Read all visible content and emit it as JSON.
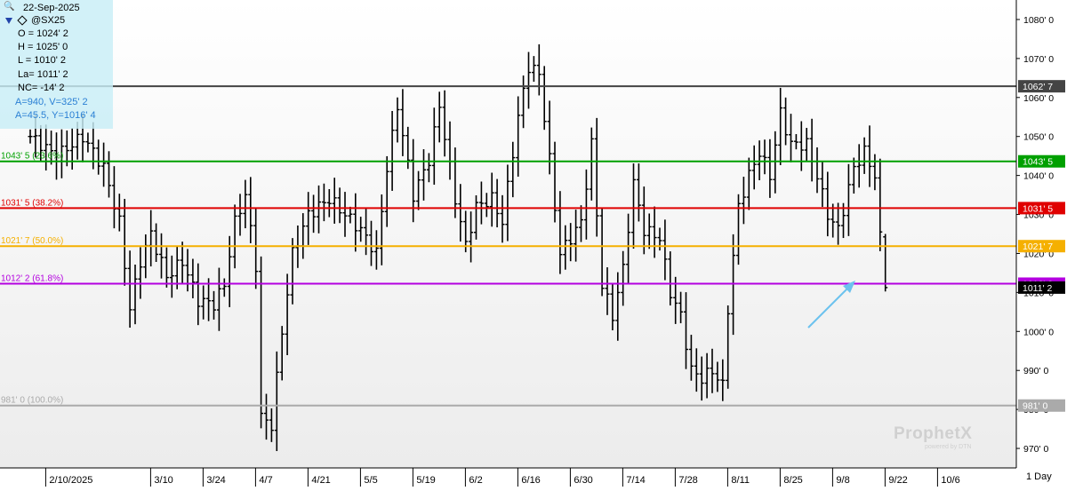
{
  "chart_data": {
    "type": "ohlc",
    "symbol": "@SX25",
    "interval": "1 Day",
    "ylim": [
      965,
      1085
    ],
    "grid": false,
    "y_ticks": [
      {
        "value": 1080,
        "label": "1080' 0"
      },
      {
        "value": 1070,
        "label": "1070' 0"
      },
      {
        "value": 1060,
        "label": "1060' 0"
      },
      {
        "value": 1050,
        "label": "1050' 0"
      },
      {
        "value": 1040,
        "label": "1040' 0"
      },
      {
        "value": 1030,
        "label": "1030' 0"
      },
      {
        "value": 1020,
        "label": "1020' 0"
      },
      {
        "value": 1010,
        "label": "1010' 0"
      },
      {
        "value": 1000,
        "label": "1000' 0"
      },
      {
        "value": 990,
        "label": "990' 0"
      },
      {
        "value": 980,
        "label": "980' 0"
      },
      {
        "value": 970,
        "label": "970' 0"
      }
    ],
    "x_ticks": [
      {
        "index": 6,
        "label": "2/10/2025"
      },
      {
        "index": 26,
        "label": "3/10"
      },
      {
        "index": 36,
        "label": "3/24"
      },
      {
        "index": 46,
        "label": "4/7"
      },
      {
        "index": 56,
        "label": "4/21"
      },
      {
        "index": 66,
        "label": "5/5"
      },
      {
        "index": 76,
        "label": "5/19"
      },
      {
        "index": 86,
        "label": "6/2"
      },
      {
        "index": 96,
        "label": "6/16"
      },
      {
        "index": 106,
        "label": "6/30"
      },
      {
        "index": 116,
        "label": "7/14"
      },
      {
        "index": 126,
        "label": "7/28"
      },
      {
        "index": 136,
        "label": "8/11"
      },
      {
        "index": 146,
        "label": "8/25"
      },
      {
        "index": 156,
        "label": "9/8"
      },
      {
        "index": 166,
        "label": "9/22"
      },
      {
        "index": 176,
        "label": "10/6"
      }
    ],
    "levels": [
      {
        "value": 1062.875,
        "left_label": "",
        "axis_label": "1062' 7",
        "color": "#444444"
      },
      {
        "value": 1043.625,
        "left_label": "1043' 5 (23.6%)",
        "axis_label": "1043' 5",
        "color": "#00a000"
      },
      {
        "value": 1031.625,
        "left_label": "1031' 5 (38.2%)",
        "axis_label": "1031' 5",
        "color": "#e00000"
      },
      {
        "value": 1021.875,
        "left_label": "1021' 7 (50.0%)",
        "axis_label": "1021' 7",
        "color": "#f5b000"
      },
      {
        "value": 1012.25,
        "left_label": "1012' 2 (61.8%)",
        "axis_label": "1012' 2",
        "color": "#b400e0"
      },
      {
        "value": 981.0,
        "left_label": "981' 0 (100.0%)",
        "axis_label": "981' 0",
        "color": "#aaaaaa"
      }
    ],
    "last_price": {
      "value": 1011.25,
      "label": "1011' 2"
    },
    "anchor": [
      {
        "index": 0,
        "close": 1050
      },
      {
        "index": 5,
        "close": 1045
      },
      {
        "index": 10,
        "close": 1050
      },
      {
        "index": 14,
        "close": 1042
      },
      {
        "index": 17,
        "close": 1028
      },
      {
        "index": 19,
        "close": 1006
      },
      {
        "index": 21,
        "close": 1018
      },
      {
        "index": 23,
        "close": 1025
      },
      {
        "index": 26,
        "close": 1014
      },
      {
        "index": 29,
        "close": 1018
      },
      {
        "index": 32,
        "close": 1008
      },
      {
        "index": 35,
        "close": 1007
      },
      {
        "index": 37,
        "close": 1012
      },
      {
        "index": 39,
        "close": 1028
      },
      {
        "index": 41,
        "close": 1035
      },
      {
        "index": 43,
        "close": 1017
      },
      {
        "index": 44,
        "close": 978
      },
      {
        "index": 46,
        "close": 976
      },
      {
        "index": 48,
        "close": 1000
      },
      {
        "index": 50,
        "close": 1020
      },
      {
        "index": 53,
        "close": 1030
      },
      {
        "index": 57,
        "close": 1034
      },
      {
        "index": 60,
        "close": 1030
      },
      {
        "index": 63,
        "close": 1026
      },
      {
        "index": 66,
        "close": 1020
      },
      {
        "index": 68,
        "close": 1042
      },
      {
        "index": 70,
        "close": 1058
      },
      {
        "index": 73,
        "close": 1035
      },
      {
        "index": 76,
        "close": 1044
      },
      {
        "index": 78,
        "close": 1058
      },
      {
        "index": 81,
        "close": 1034
      },
      {
        "index": 83,
        "close": 1022
      },
      {
        "index": 85,
        "close": 1032
      },
      {
        "index": 88,
        "close": 1034
      },
      {
        "index": 90,
        "close": 1028
      },
      {
        "index": 93,
        "close": 1055
      },
      {
        "index": 95,
        "close": 1068
      },
      {
        "index": 97,
        "close": 1066
      },
      {
        "index": 99,
        "close": 1044
      },
      {
        "index": 101,
        "close": 1020
      },
      {
        "index": 103,
        "close": 1024
      },
      {
        "index": 105,
        "close": 1028
      },
      {
        "index": 107,
        "close": 1048
      },
      {
        "index": 109,
        "close": 1012
      },
      {
        "index": 111,
        "close": 1004
      },
      {
        "index": 113,
        "close": 1016
      },
      {
        "index": 115,
        "close": 1038
      },
      {
        "index": 117,
        "close": 1026
      },
      {
        "index": 120,
        "close": 1024
      },
      {
        "index": 122,
        "close": 1010
      },
      {
        "index": 124,
        "close": 1004
      },
      {
        "index": 126,
        "close": 990
      },
      {
        "index": 128,
        "close": 988
      },
      {
        "index": 130,
        "close": 990
      },
      {
        "index": 132,
        "close": 986
      },
      {
        "index": 133,
        "close": 1006
      },
      {
        "index": 135,
        "close": 1032
      },
      {
        "index": 137,
        "close": 1040
      },
      {
        "index": 139,
        "close": 1046
      },
      {
        "index": 141,
        "close": 1040
      },
      {
        "index": 143,
        "close": 1056
      },
      {
        "index": 145,
        "close": 1048
      },
      {
        "index": 148,
        "close": 1048
      },
      {
        "index": 150,
        "close": 1040
      },
      {
        "index": 152,
        "close": 1030
      },
      {
        "index": 154,
        "close": 1026
      },
      {
        "index": 157,
        "close": 1042
      },
      {
        "index": 159,
        "close": 1046
      },
      {
        "index": 161,
        "close": 1040
      },
      {
        "index": 162,
        "close": 1024
      },
      {
        "index": 163,
        "close": 1011
      }
    ],
    "last_bar": {
      "open": 1024.25,
      "high": 1025,
      "low": 1010.25,
      "close": 1011.25
    }
  },
  "info_panel": {
    "date": "22-Sep-2025",
    "symbol": "@SX25",
    "open": "O = 1024' 2",
    "high": "H = 1025' 0",
    "low": "L = 1010' 2",
    "last": "La= 1011' 2",
    "net_change": "NC= -14' 2",
    "a_line1": "A=940, V=325' 2",
    "a_line2": "A=45.5, Y=1016' 4"
  },
  "branding": {
    "logo": "ProphetX",
    "sub": "powered by DTN"
  },
  "interval_label": "1 Day",
  "colors": {
    "bar": "#000000",
    "arrow": "#6cc2ee",
    "axis_bg": "#ffffff",
    "chart_bg_top": "#ffffff",
    "chart_bg_bottom": "#f0f0f0"
  }
}
